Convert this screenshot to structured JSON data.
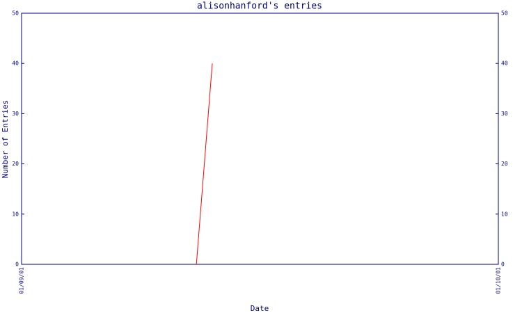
{
  "chart_data": {
    "type": "line",
    "title": "alisonhanford's entries",
    "x_label": "Date",
    "y_label": "Number of Entries",
    "x": [
      "12/09/01",
      "13/09/01"
    ],
    "series": [
      {
        "color": "#ff0000",
        "values": [
          0,
          40
        ]
      }
    ],
    "xlim": [
      "01/09/01",
      "01/10/01"
    ],
    "xticks": [
      "01/09/01",
      "01/10/01"
    ],
    "ylim": [
      0,
      50
    ],
    "yticks": [
      0,
      10,
      20,
      30,
      40,
      50
    ],
    "axis_color": "#000080",
    "grid": false
  }
}
